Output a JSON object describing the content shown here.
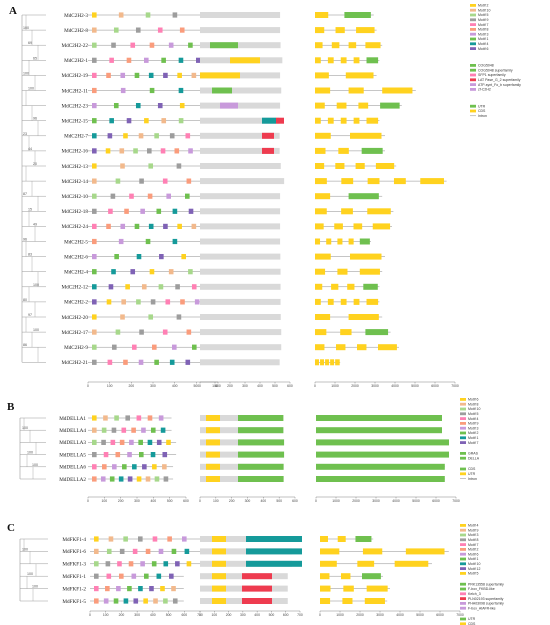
{
  "panels": [
    {
      "letter": "A",
      "genes": [
        "MdC2H2-3",
        "MdC2H2-8",
        "MdC2H2-22",
        "MdC2H2-1",
        "MdC2H2-19",
        "MdC2H2-11",
        "MdC2H2-23",
        "MdC2H2-15",
        "MdC2H2-7",
        "MdC2H2-16",
        "MdC2H2-13",
        "MdC2H2-14",
        "MdC2H2-10",
        "MdC2H2-18",
        "MdC2H2-24",
        "MdC2H2-5",
        "MdC2H2-6",
        "MdC2H2-4",
        "MdC2H2-12",
        "MdC2H2-2",
        "MdC2H2-20",
        "MdC2H2-17",
        "MdC2H2-9",
        "MdC2H2-21"
      ],
      "bootstrap": [
        "100",
        "69",
        "65",
        "100",
        "100",
        "96",
        "23",
        "44",
        "20",
        "87",
        "15",
        "49",
        "96",
        "83",
        "100",
        "80",
        "97",
        "100",
        "86"
      ],
      "motif_axis": [
        "0",
        "100",
        "200",
        "300",
        "400",
        "500",
        "600"
      ],
      "domain_axis": [
        "0",
        "100",
        "200",
        "300",
        "400",
        "500",
        "600"
      ],
      "structure_axis": [
        "0",
        "1000",
        "2000",
        "3000",
        "4000",
        "5000",
        "6000",
        "7000"
      ],
      "motif_legend": [
        "Motif 2",
        "Motif 10",
        "Motif 5",
        "Motif 9",
        "Motif 7",
        "Motif 8",
        "Motif 3",
        "Motif 1",
        "Motif 4",
        "Motif 6"
      ],
      "domain_legend": [
        "COG5048",
        "COG5048 superfamily",
        "SFP1 superfamily",
        "LAT Pase_G_2 superfamily",
        "ATP-synt_Fo_b superfamily",
        "zf-C2H2"
      ],
      "structure_legend": [
        "UTR",
        "CDS",
        "Intron"
      ]
    },
    {
      "letter": "B",
      "genes": [
        "MdDELLA1",
        "MdDELLA4",
        "MdDELLA3",
        "MdDELLA5",
        "MdDELLA6",
        "MdDELLA2"
      ],
      "bootstrap": [
        "100",
        "100",
        "100"
      ],
      "motif_axis": [
        "0",
        "100",
        "200",
        "300",
        "400",
        "500",
        "600"
      ],
      "domain_axis": [
        "0",
        "100",
        "200",
        "300",
        "400",
        "500",
        "600"
      ],
      "structure_axis": [
        "0",
        "1000",
        "2000",
        "3000",
        "4000",
        "5000",
        "6000",
        "7000"
      ],
      "motif_legend": [
        "Motif 6",
        "Motif 8",
        "Motif 10",
        "Motif 5",
        "Motif 4",
        "Motif 9",
        "Motif 3",
        "Motif 2",
        "Motif 1",
        "Motif 7"
      ],
      "domain_legend": [
        "GRAS",
        "DELLA"
      ],
      "structure_legend": [
        "CDS",
        "UTR",
        "Intron"
      ]
    },
    {
      "letter": "C",
      "genes": [
        "MdFKF1-4",
        "MdFKF1-6",
        "MdFKF1-3",
        "MdFKF1-1",
        "MdFKF1-2",
        "MdFKF1-5"
      ],
      "bootstrap": [
        "100",
        "100",
        "100"
      ],
      "motif_axis": [
        "0",
        "100",
        "200",
        "300",
        "400",
        "500",
        "600",
        "700"
      ],
      "domain_axis": [
        "0",
        "100",
        "200",
        "300",
        "400",
        "500",
        "600",
        "700"
      ],
      "structure_axis": [
        "0",
        "1000",
        "2000",
        "3000",
        "4000",
        "5000",
        "6000",
        "7000"
      ],
      "motif_legend": [
        "Motif 4",
        "Motif 9",
        "Motif 3",
        "Motif 8",
        "Motif 7",
        "Motif 2",
        "Motif 6",
        "Motif 1",
        "Motif 10",
        "Motif 12",
        "Motif 5"
      ],
      "domain_legend": [
        "PRK13558 superfamily",
        "F-box_FKBD-like",
        "Kelch_3",
        "PLN02193 superfamily",
        "PHA03098 superfamily",
        "F-box_AtAFR-like"
      ],
      "structure_legend": [
        "UTR",
        "CDS",
        "Intron"
      ]
    }
  ],
  "colors": {
    "tree": "#9a9a9a",
    "backbone": "#bdbdbd",
    "protein_bar": "#d9d9d9",
    "gene_line": "#8c8c8c",
    "cds": "#ffd21f",
    "utr": "#6fc04f",
    "teal": "#159a9a",
    "red": "#ee3b4f",
    "pink": "#ff80b4",
    "purple": "#7f62b5",
    "orange_tan": "#f2b98c",
    "salmon": "#fa9c7c",
    "light_green": "#a7d88b",
    "grey_motif": "#9d9d9d",
    "lilac": "#c89adb",
    "blue": "#3e77c6"
  }
}
